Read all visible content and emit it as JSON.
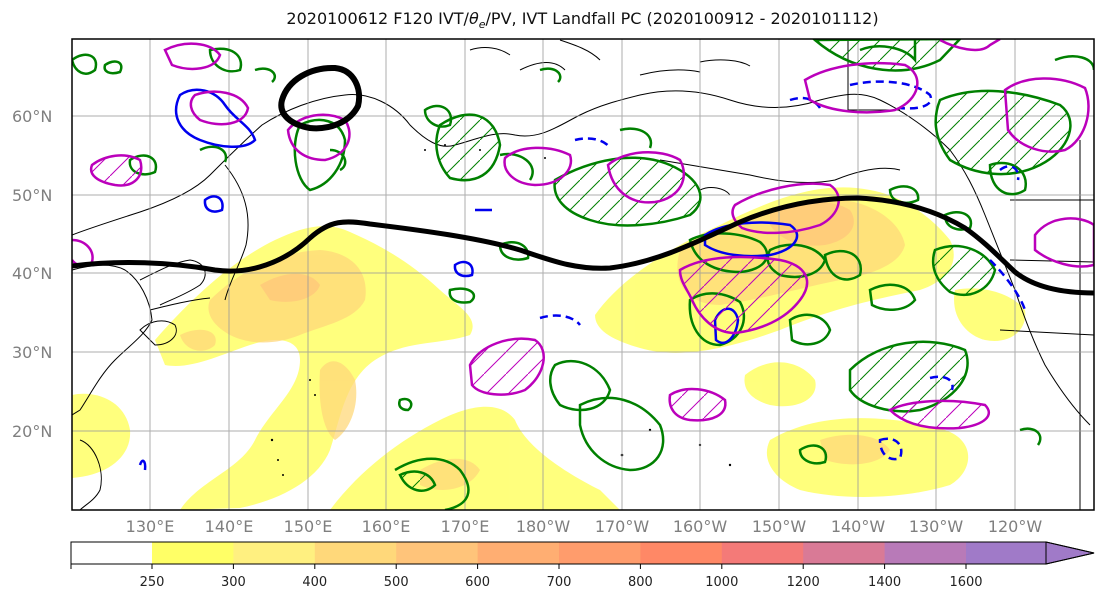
{
  "title": {
    "prefix": "2020100612 F120 IVT/",
    "theta": "θ",
    "theta_sub": "e",
    "suffix": "/PV, IVT Landfall PC (2020100912 - 2020101112)"
  },
  "axes": {
    "lat_labels": [
      "60°N",
      "50°N",
      "40°N",
      "30°N",
      "20°N"
    ],
    "lon_labels": [
      "130°E",
      "140°E",
      "150°E",
      "160°E",
      "170°E",
      "180°W",
      "170°W",
      "160°W",
      "150°W",
      "140°W",
      "130°W",
      "120°W"
    ],
    "gridlines": true
  },
  "colorbar": {
    "ticks": [
      "250",
      "300",
      "400",
      "500",
      "600",
      "700",
      "800",
      "1000",
      "1200",
      "1400",
      "1600"
    ],
    "colors": [
      "#ffff66",
      "#fff080",
      "#ffd87a",
      "#ffc47a",
      "#ffae72",
      "#ff9c6c",
      "#ff8866",
      "#f47a78",
      "#d97a96",
      "#b87ab8",
      "#a07ac8"
    ],
    "extend": "max"
  },
  "styles": {
    "ivt_base_color": "#ffcc33",
    "theta_e_color": "#008000",
    "pv_color": "#0000ee",
    "pc_color": "#bb00bb",
    "jet_color": "#000000"
  }
}
